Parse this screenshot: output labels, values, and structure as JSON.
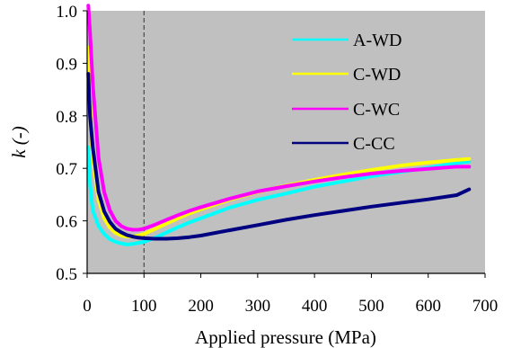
{
  "chart_data": {
    "type": "line",
    "title": "",
    "xlabel": "Applied pressure (MPa)",
    "ylabel": "k (-)",
    "xlim": [
      0,
      700
    ],
    "ylim": [
      0.5,
      1.0
    ],
    "xticks": [
      "0",
      "100",
      "200",
      "300",
      "400",
      "500",
      "600",
      "700"
    ],
    "yticks": [
      "0.5",
      "0.6",
      "0.7",
      "0.8",
      "0.9",
      "1.0"
    ],
    "grid": false,
    "plot_background": "#c0c0c0",
    "reference_line": {
      "x": 100,
      "style": "dashed"
    },
    "legend_position": "top-right",
    "series": [
      {
        "name": "A-WD",
        "color": "#00ffff",
        "x": [
          2,
          5,
          10,
          20,
          30,
          40,
          50,
          60,
          70,
          80,
          90,
          100,
          120,
          140,
          160,
          180,
          200,
          250,
          300,
          350,
          400,
          450,
          500,
          550,
          600,
          650,
          672
        ],
        "y": [
          0.74,
          0.67,
          0.62,
          0.59,
          0.575,
          0.565,
          0.56,
          0.557,
          0.555,
          0.556,
          0.558,
          0.56,
          0.568,
          0.578,
          0.588,
          0.597,
          0.605,
          0.625,
          0.64,
          0.652,
          0.665,
          0.675,
          0.685,
          0.693,
          0.701,
          0.71,
          0.713
        ]
      },
      {
        "name": "C-WD",
        "color": "#ffff00",
        "x": [
          2,
          5,
          10,
          20,
          30,
          40,
          50,
          60,
          70,
          80,
          90,
          100,
          120,
          140,
          160,
          180,
          200,
          250,
          300,
          350,
          400,
          450,
          500,
          550,
          600,
          650,
          672
        ],
        "y": [
          0.93,
          0.82,
          0.72,
          0.64,
          0.605,
          0.587,
          0.577,
          0.572,
          0.57,
          0.57,
          0.572,
          0.575,
          0.585,
          0.595,
          0.605,
          0.614,
          0.622,
          0.64,
          0.655,
          0.667,
          0.678,
          0.688,
          0.697,
          0.705,
          0.711,
          0.716,
          0.718
        ]
      },
      {
        "name": "C-WC",
        "color": "#ff00ff",
        "x": [
          2,
          5,
          10,
          20,
          30,
          40,
          50,
          60,
          70,
          80,
          90,
          100,
          120,
          140,
          160,
          180,
          200,
          250,
          300,
          350,
          400,
          450,
          500,
          550,
          600,
          650,
          672
        ],
        "y": [
          1.02,
          0.96,
          0.86,
          0.72,
          0.655,
          0.62,
          0.6,
          0.59,
          0.585,
          0.583,
          0.583,
          0.585,
          0.593,
          0.602,
          0.611,
          0.619,
          0.626,
          0.642,
          0.656,
          0.666,
          0.675,
          0.683,
          0.69,
          0.695,
          0.699,
          0.703,
          0.703
        ]
      },
      {
        "name": "C-CC",
        "color": "#000080",
        "x": [
          2,
          5,
          10,
          20,
          30,
          40,
          50,
          60,
          70,
          80,
          90,
          100,
          120,
          140,
          160,
          180,
          200,
          250,
          300,
          350,
          400,
          450,
          500,
          550,
          600,
          650,
          672
        ],
        "y": [
          0.88,
          0.8,
          0.74,
          0.655,
          0.618,
          0.598,
          0.585,
          0.578,
          0.573,
          0.57,
          0.568,
          0.567,
          0.566,
          0.566,
          0.567,
          0.569,
          0.572,
          0.582,
          0.592,
          0.602,
          0.611,
          0.619,
          0.627,
          0.634,
          0.641,
          0.649,
          0.66
        ]
      }
    ]
  }
}
